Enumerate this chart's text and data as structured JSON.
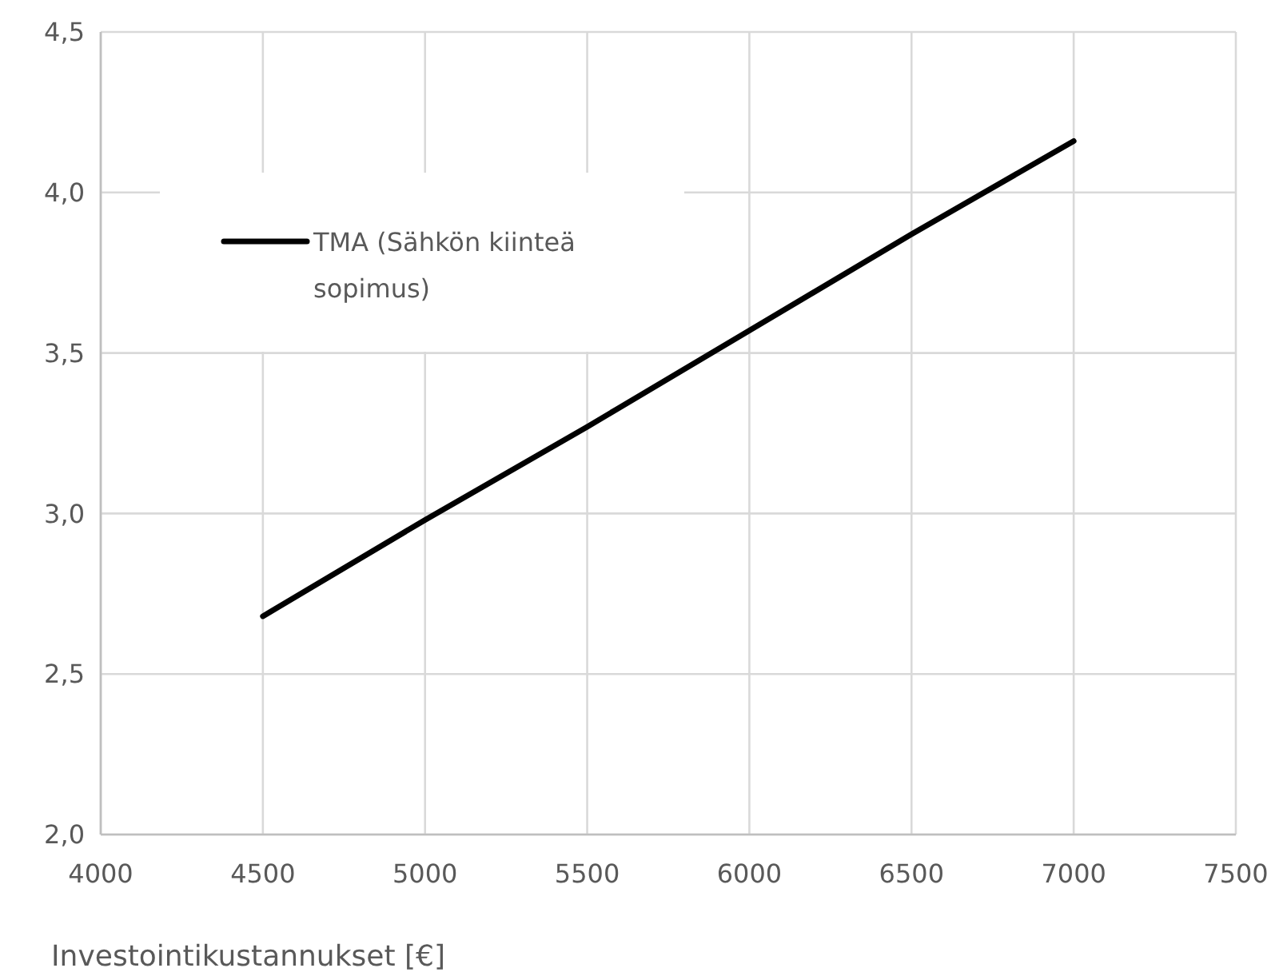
{
  "chart_data": {
    "type": "line",
    "xlabel": "Investointikustannukset [€]",
    "x": [
      4500,
      5000,
      5500,
      6000,
      6500,
      7000
    ],
    "series": [
      {
        "name": "TMA (Sähkön kiinteä sopimus)",
        "color": "#000000",
        "values": [
          2.68,
          2.98,
          3.27,
          3.57,
          3.87,
          4.16
        ]
      }
    ],
    "xlim": [
      4000,
      7500
    ],
    "xticks": [
      4000,
      4500,
      5000,
      5500,
      6000,
      6500,
      7000,
      7500
    ],
    "ylim": [
      2.0,
      4.5
    ],
    "yticks": [
      {
        "value": 2.0,
        "label": "2,0"
      },
      {
        "value": 2.5,
        "label": "2,5"
      },
      {
        "value": 3.0,
        "label": "3,0"
      },
      {
        "value": 3.5,
        "label": "3,5"
      },
      {
        "value": 4.0,
        "label": "4,0"
      },
      {
        "value": 4.5,
        "label": "4,5"
      }
    ],
    "grid": true,
    "legend": "top left",
    "marker": "none",
    "line_style": "solid"
  }
}
